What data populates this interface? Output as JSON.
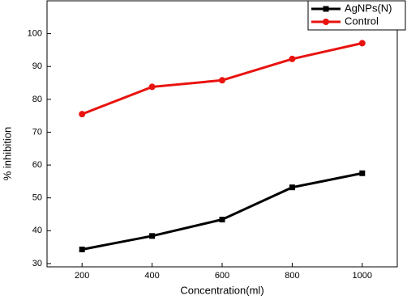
{
  "chart_data": {
    "type": "line",
    "x_label": "Concentration(ml)",
    "y_label": "% inhibition",
    "x": [
      200,
      400,
      600,
      800,
      1000
    ],
    "series": [
      {
        "name": "AgNPs(N)",
        "color": "#000000",
        "marker": "square",
        "values": [
          34.3,
          38.4,
          43.4,
          53.2,
          57.5
        ]
      },
      {
        "name": "Control",
        "color": "#e8130f",
        "marker": "circle",
        "values": [
          75.5,
          83.8,
          85.8,
          92.3,
          97.1
        ]
      }
    ],
    "xlim": [
      100,
      1100
    ],
    "xticks": [
      200,
      400,
      600,
      800,
      1000
    ],
    "ylim": [
      29,
      110
    ],
    "yticks": [
      30,
      40,
      50,
      60,
      70,
      80,
      90,
      100
    ],
    "grid": false,
    "legend": "upper right"
  }
}
